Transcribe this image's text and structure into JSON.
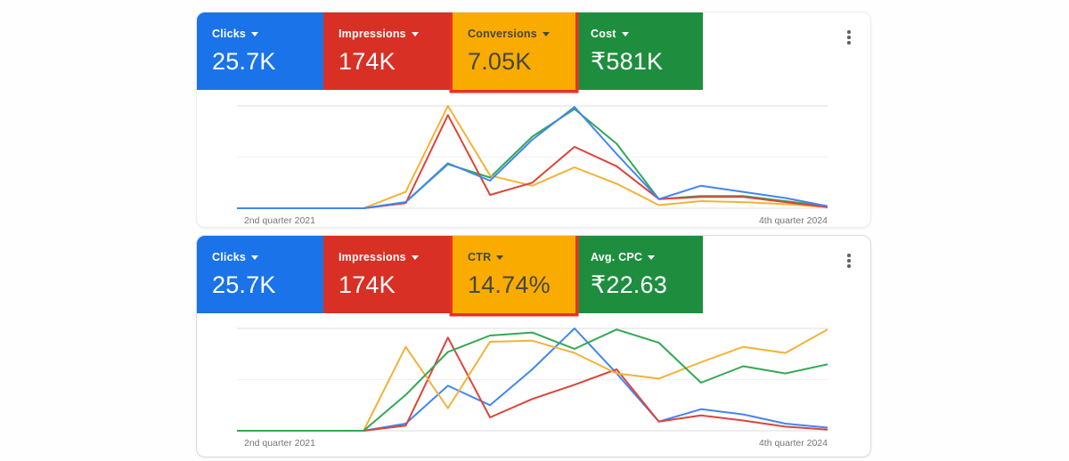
{
  "highlight_border_color": "#e93223",
  "panels": [
    {
      "name": "performance-over-time-panel-1",
      "menu_icon": "kebab-menu-icon",
      "cards": [
        {
          "label": "Clicks",
          "value": "25.7K",
          "bg": "#1a73e8",
          "text_color": "#ffffff",
          "caret_icon": "dropdown-caret-icon",
          "highlight": false
        },
        {
          "label": "Impressions",
          "value": "174K",
          "bg": "#d93025",
          "text_color": "#ffffff",
          "caret_icon": "dropdown-caret-icon",
          "highlight": false
        },
        {
          "label": "Conversions",
          "value": "7.05K",
          "bg": "#f9ab00",
          "text_color": "#45483e",
          "caret_icon": "dropdown-caret-icon",
          "highlight": true
        },
        {
          "label": "Cost",
          "value": "₹581K",
          "bg": "#1e8e3e",
          "text_color": "#ffffff",
          "caret_icon": "dropdown-caret-icon",
          "highlight": false
        }
      ]
    },
    {
      "name": "performance-over-time-panel-2",
      "menu_icon": "kebab-menu-icon",
      "cards": [
        {
          "label": "Clicks",
          "value": "25.7K",
          "bg": "#1a73e8",
          "text_color": "#ffffff",
          "caret_icon": "dropdown-caret-icon",
          "highlight": false
        },
        {
          "label": "Impressions",
          "value": "174K",
          "bg": "#d93025",
          "text_color": "#ffffff",
          "caret_icon": "dropdown-caret-icon",
          "highlight": false
        },
        {
          "label": "CTR",
          "value": "14.74%",
          "bg": "#f9ab00",
          "text_color": "#45483e",
          "caret_icon": "dropdown-caret-icon",
          "highlight": true
        },
        {
          "label": "Avg. CPC",
          "value": "₹22.63",
          "bg": "#1e8e3e",
          "text_color": "#ffffff",
          "caret_icon": "dropdown-caret-icon",
          "highlight": false
        }
      ]
    }
  ],
  "chart_data": [
    {
      "type": "line",
      "title": "",
      "categories": [
        "Q2 2021",
        "Q3 2021",
        "Q4 2021",
        "Q1 2022",
        "Q2 2022",
        "Q3 2022",
        "Q4 2022",
        "Q1 2023",
        "Q2 2023",
        "Q3 2023",
        "Q4 2023",
        "Q1 2024",
        "Q2 2024",
        "Q3 2024",
        "Q4 2024"
      ],
      "x_axis_labels": [
        "2nd quarter 2021",
        "4th quarter 2024"
      ],
      "ylim": [
        0,
        100
      ],
      "values_unit": "percent of chart height (each metric normalized to its own max)",
      "gridlines": [
        0,
        50,
        100
      ],
      "grid": "horizontal",
      "legend": "none",
      "draw_order": [
        3,
        2,
        1,
        0
      ],
      "series": [
        {
          "name": "Clicks",
          "color": "#4285f4",
          "values": [
            0,
            0,
            0,
            0,
            6,
            44,
            27,
            67,
            99,
            53,
            9,
            22,
            16,
            10,
            2
          ]
        },
        {
          "name": "Impressions",
          "color": "#db453c",
          "values": [
            0,
            0,
            0,
            0,
            5,
            91,
            13,
            25,
            60,
            41,
            9,
            11,
            11,
            6,
            1
          ]
        },
        {
          "name": "Conversions",
          "color": "#f2b237",
          "values": [
            0,
            0,
            0,
            0,
            16,
            100,
            32,
            22,
            40,
            24,
            3,
            7,
            6,
            4,
            1
          ]
        },
        {
          "name": "Cost",
          "color": "#34a853",
          "values": [
            0,
            0,
            0,
            0,
            6,
            43,
            30,
            70,
            97,
            63,
            9,
            12,
            12,
            7,
            2
          ]
        }
      ]
    },
    {
      "type": "line",
      "title": "",
      "categories": [
        "Q2 2021",
        "Q3 2021",
        "Q4 2021",
        "Q1 2022",
        "Q2 2022",
        "Q3 2022",
        "Q4 2022",
        "Q1 2023",
        "Q2 2023",
        "Q3 2023",
        "Q4 2023",
        "Q1 2024",
        "Q2 2024",
        "Q3 2024",
        "Q4 2024"
      ],
      "x_axis_labels": [
        "2nd quarter 2021",
        "4th quarter 2024"
      ],
      "ylim": [
        0,
        100
      ],
      "values_unit": "percent of chart height (each metric normalized to its own max)",
      "gridlines": [
        0,
        50,
        100
      ],
      "grid": "horizontal",
      "legend": "none",
      "draw_order": [
        0,
        1,
        2,
        3
      ],
      "series": [
        {
          "name": "Clicks",
          "color": "#4285f4",
          "values": [
            0,
            0,
            0,
            0,
            7,
            44,
            25,
            60,
            100,
            56,
            9,
            21,
            16,
            7,
            3
          ]
        },
        {
          "name": "Impressions",
          "color": "#db453c",
          "values": [
            0,
            0,
            0,
            0,
            5,
            91,
            13,
            31,
            45,
            60,
            9,
            15,
            10,
            4,
            1
          ]
        },
        {
          "name": "CTR",
          "color": "#f2b237",
          "values": [
            0,
            0,
            0,
            0,
            82,
            22,
            87,
            88,
            76,
            56,
            51,
            67,
            82,
            76,
            99
          ]
        },
        {
          "name": "Avg. CPC",
          "color": "#34a853",
          "values": [
            0,
            0,
            0,
            0,
            35,
            77,
            93,
            96,
            80,
            99,
            86,
            47,
            63,
            56,
            65
          ]
        }
      ]
    }
  ]
}
